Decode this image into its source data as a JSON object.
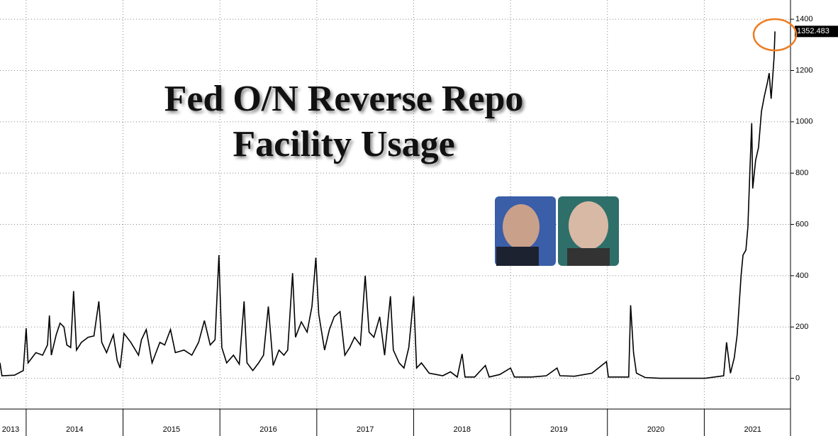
{
  "chart_data": {
    "type": "line",
    "title": "Fed O/N Reverse Repo Facility Usage",
    "color": "#000000",
    "x": [
      2013.73,
      2013.75,
      2013.88,
      2013.97,
      2014.0,
      2014.02,
      2014.1,
      2014.17,
      2014.22,
      2014.24,
      2014.26,
      2014.31,
      2014.35,
      2014.39,
      2014.42,
      2014.46,
      2014.49,
      2014.52,
      2014.57,
      2014.64,
      2014.7,
      2014.75,
      2014.78,
      2014.83,
      2014.9,
      2014.94,
      2014.97,
      2015.01,
      2015.08,
      2015.16,
      2015.19,
      2015.24,
      2015.3,
      2015.38,
      2015.43,
      2015.49,
      2015.54,
      2015.63,
      2015.71,
      2015.78,
      2015.84,
      2015.9,
      2015.95,
      2015.99,
      2016.02,
      2016.07,
      2016.14,
      2016.2,
      2016.25,
      2016.28,
      2016.34,
      2016.4,
      2016.45,
      2016.5,
      2016.55,
      2016.61,
      2016.66,
      2016.7,
      2016.75,
      2016.78,
      2016.84,
      2016.9,
      2016.95,
      2016.99,
      2017.02,
      2017.08,
      2017.13,
      2017.18,
      2017.24,
      2017.29,
      2017.34,
      2017.39,
      2017.45,
      2017.5,
      2017.54,
      2017.59,
      2017.65,
      2017.7,
      2017.76,
      2017.79,
      2017.85,
      2017.9,
      2017.95,
      2018.0,
      2018.03,
      2018.08,
      2018.16,
      2018.23,
      2018.3,
      2018.38,
      2018.45,
      2018.5,
      2018.53,
      2018.63,
      2018.74,
      2018.78,
      2018.89,
      2019.0,
      2019.04,
      2019.22,
      2019.37,
      2019.48,
      2019.51,
      2019.66,
      2019.84,
      2019.99,
      2020.01,
      2020.1,
      2020.22,
      2020.24,
      2020.27,
      2020.3,
      2020.39,
      2020.54,
      2020.76,
      2021.01,
      2021.2,
      2021.23,
      2021.27,
      2021.31,
      2021.34,
      2021.38,
      2021.4,
      2021.43,
      2021.45,
      2021.47,
      2021.49,
      2021.5,
      2021.53,
      2021.56,
      2021.59,
      2021.62,
      2021.65,
      2021.67,
      2021.69,
      2021.72,
      2021.73
    ],
    "values": [
      60,
      10,
      12,
      30,
      195,
      60,
      100,
      90,
      130,
      245,
      90,
      170,
      215,
      200,
      130,
      120,
      340,
      110,
      140,
      160,
      165,
      300,
      140,
      100,
      170,
      70,
      40,
      175,
      140,
      90,
      150,
      190,
      60,
      140,
      130,
      190,
      100,
      110,
      90,
      140,
      225,
      130,
      150,
      480,
      120,
      60,
      90,
      55,
      300,
      60,
      30,
      60,
      90,
      280,
      50,
      110,
      90,
      110,
      410,
      160,
      220,
      180,
      280,
      470,
      250,
      110,
      190,
      240,
      260,
      90,
      120,
      160,
      130,
      400,
      180,
      160,
      240,
      90,
      320,
      110,
      60,
      40,
      120,
      320,
      40,
      60,
      20,
      15,
      10,
      25,
      5,
      95,
      5,
      5,
      50,
      5,
      15,
      40,
      5,
      5,
      10,
      40,
      10,
      8,
      20,
      65,
      5,
      5,
      5,
      285,
      100,
      20,
      3,
      0,
      0,
      0,
      10,
      140,
      20,
      80,
      170,
      400,
      480,
      500,
      590,
      800,
      995,
      740,
      850,
      900,
      1040,
      1100,
      1150,
      1190,
      1090,
      1250,
      1352.483
    ],
    "xlim": [
      2013.73,
      2021.89
    ],
    "xticks": [
      {
        "value": 2013,
        "label": "2013"
      },
      {
        "value": 2014,
        "label": "2014"
      },
      {
        "value": 2015,
        "label": "2015"
      },
      {
        "value": 2016,
        "label": "2016"
      },
      {
        "value": 2017,
        "label": "2017"
      },
      {
        "value": 2018,
        "label": "2018"
      },
      {
        "value": 2019,
        "label": "2019"
      },
      {
        "value": 2020,
        "label": "2020"
      },
      {
        "value": 2021,
        "label": "2021"
      }
    ],
    "ylim": [
      -120,
      1475
    ],
    "yticks": [
      0,
      200,
      400,
      600,
      800,
      1000,
      1200,
      1400
    ],
    "grid": true
  }
}
